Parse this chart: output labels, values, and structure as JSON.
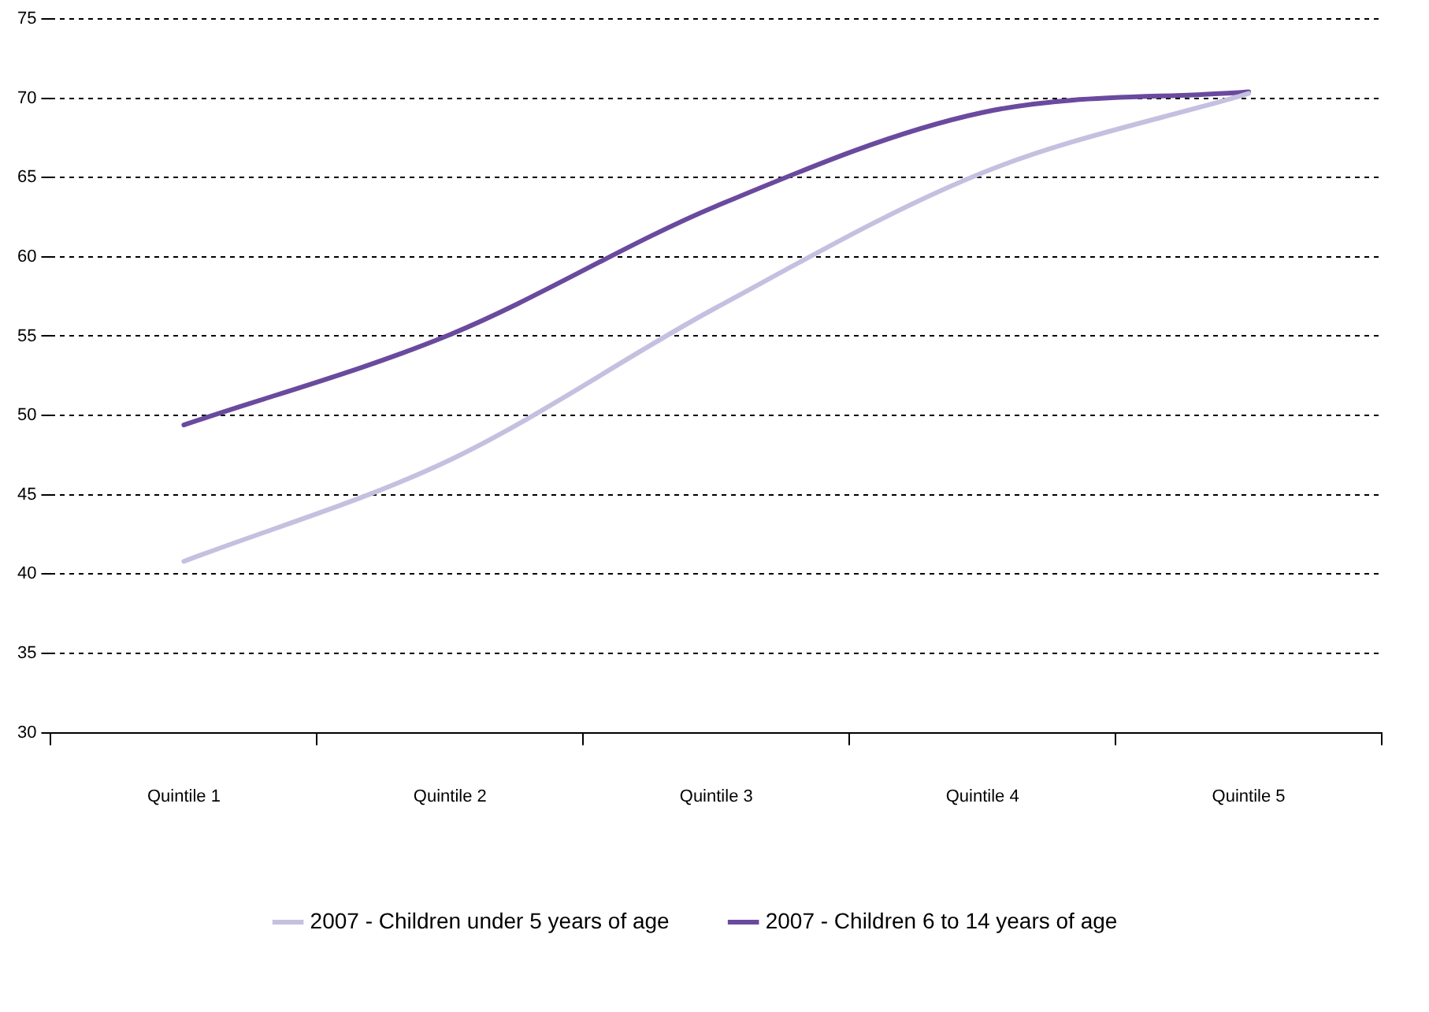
{
  "chart_data": {
    "type": "line",
    "categories": [
      "Quintile 1",
      "Quintile 2",
      "Quintile 3",
      "Quintile 4",
      "Quintile 5"
    ],
    "series": [
      {
        "name": "2007 - Children under 5 years of age",
        "color": "#c5c0e0",
        "values": [
          40.8,
          47.2,
          56.8,
          65.3,
          70.3
        ]
      },
      {
        "name": "2007 - Children 6 to 14 years of age",
        "color": "#6a4a9e",
        "values": [
          49.4,
          55.1,
          63.2,
          69.1,
          70.4
        ]
      }
    ],
    "ylim": [
      30,
      75
    ],
    "yticks": [
      30,
      35,
      40,
      45,
      50,
      55,
      60,
      65,
      70,
      75
    ],
    "grid": "y",
    "legend": "bottom",
    "marker": "none",
    "line_style": "solid"
  }
}
